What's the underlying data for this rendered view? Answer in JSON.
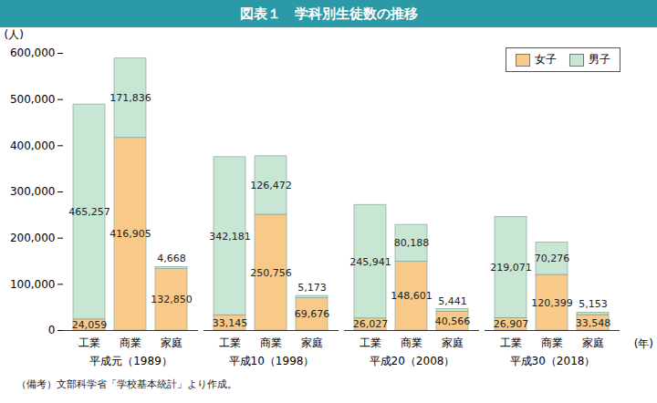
{
  "chart_data": {
    "type": "bar",
    "title": "図表１　学科別生徒数の推移",
    "note": "（備考）文部科学省「学校基本統計」より作成。",
    "y_label": "(人)",
    "x_label": "(年)",
    "categories": [
      "工業",
      "商業",
      "家庭",
      "工業",
      "商業",
      "家庭",
      "工業",
      "商業",
      "家庭",
      "工業",
      "商業",
      "家庭"
    ],
    "category_groups": [
      "平成元（1989）",
      "平成元（1989）",
      "平成元（1989）",
      "平成10（1998）",
      "平成10（1998）",
      "平成10（1998）",
      "平成20（2008）",
      "平成20（2008）",
      "平成20（2008）",
      "平成30（2018）",
      "平成30（2018）",
      "平成30（2018）"
    ],
    "series": [
      {
        "name": "女子",
        "color": "#f9c98a",
        "values": [
          24059,
          416905,
          132850,
          33145,
          250756,
          69676,
          26027,
          148601,
          40566,
          26907,
          120399,
          33548
        ],
        "value_labels": [
          "24,059",
          "416,905",
          "132,850",
          "33,145",
          "250,756",
          "69,676",
          "26,027",
          "148,601",
          "40,566",
          "26,907",
          "120,399",
          "33,548"
        ]
      },
      {
        "name": "男子",
        "color": "#c8e6d4",
        "values": [
          465257,
          171836,
          4668,
          342181,
          126472,
          5173,
          245941,
          80188,
          5441,
          219071,
          70276,
          5153
        ],
        "value_labels": [
          "465,257",
          "171,836",
          "4,668",
          "342,181",
          "126,472",
          "5,173",
          "245,941",
          "80,188",
          "5,441",
          "219,071",
          "70,276",
          "5,153"
        ]
      }
    ],
    "stacked": true,
    "data_labels": true,
    "legend": "top-right",
    "grid": false,
    "ylim": [
      0,
      600000
    ],
    "yticks": [
      0,
      {
        "value": 100000,
        "label": "100,000"
      },
      {
        "value": 200000,
        "label": "200,000"
      },
      {
        "value": 300000,
        "label": "300,000"
      },
      {
        "value": 400000,
        "label": "400,000"
      },
      {
        "value": 500000,
        "label": "500,000"
      },
      {
        "value": 600000,
        "label": "600,000"
      }
    ]
  }
}
